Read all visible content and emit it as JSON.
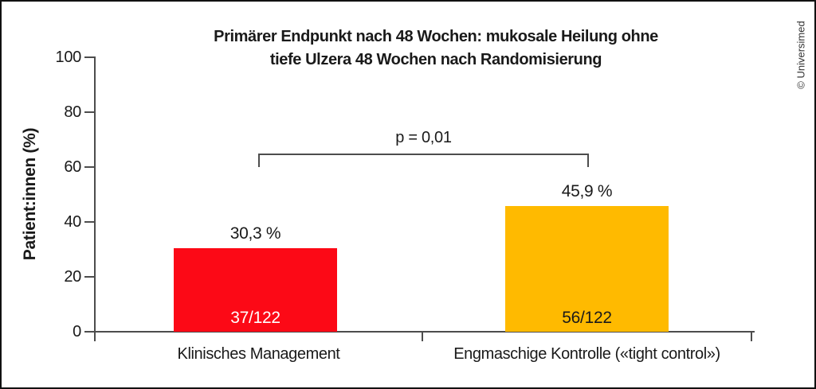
{
  "figure": {
    "title_line1": "Primärer Endpunkt nach 48 Wochen: mukosale Heilung ohne",
    "title_line2": "tiefe Ulzera 48 Wochen nach Randomisierung",
    "credit": "© Universimed"
  },
  "chart_data": {
    "type": "bar",
    "title": "Primärer Endpunkt nach 48 Wochen: mukosale Heilung ohne tiefe Ulzera 48 Wochen nach Randomisierung",
    "ylabel": "Patient:innen (%)",
    "ylim": [
      0,
      100
    ],
    "yticks": [
      0,
      20,
      40,
      60,
      80,
      100
    ],
    "ytick_labels": [
      "0",
      "20",
      "40",
      "60",
      "80",
      "100"
    ],
    "grid": false,
    "categories": [
      "Klinisches Management",
      "Engmaschige Kontrolle («tight control»)"
    ],
    "values": [
      30.3,
      45.9
    ],
    "value_labels": [
      "30,3 %",
      "45,9 %"
    ],
    "fraction_labels": [
      "37/122",
      "56/122"
    ],
    "bar_colors": [
      "#fc0916",
      "#ffba00"
    ],
    "annotation": "p = 0,01",
    "annotation_span": "between bar centers"
  }
}
